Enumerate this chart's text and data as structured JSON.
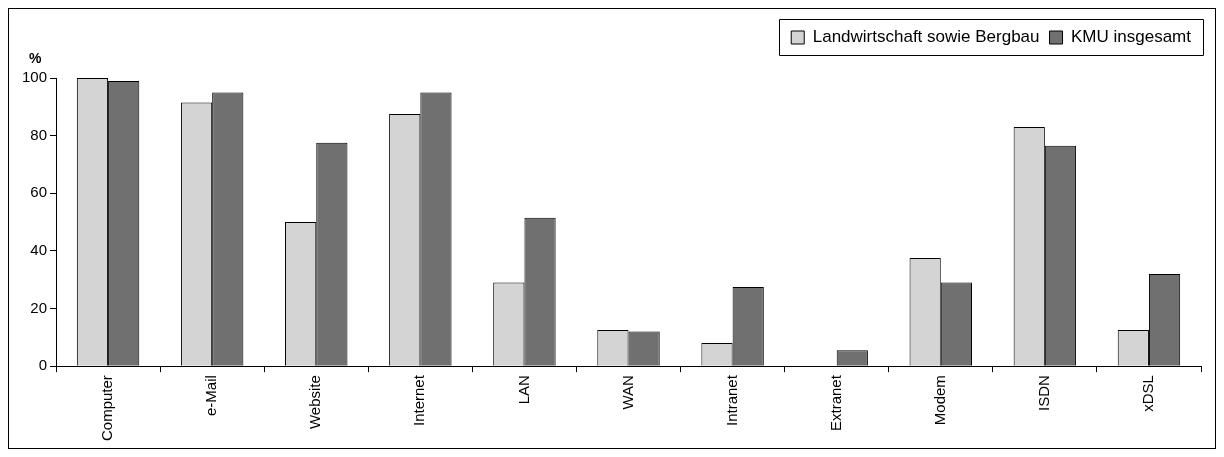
{
  "chart_data": {
    "type": "bar",
    "ylabel": "%",
    "categories": [
      "Computer",
      "e-Mail",
      "Website",
      "Internet",
      "LAN",
      "WAN",
      "Intranet",
      "Extranet",
      "Modem",
      "ISDN",
      "xDSL"
    ],
    "series": [
      {
        "name": "Landwirtschaft sowie Bergbau",
        "color": "#d4d4d4",
        "values": [
          100,
          91.5,
          50,
          87.5,
          29,
          12.5,
          8,
          0,
          37.5,
          83,
          12.5
        ]
      },
      {
        "name": "KMU insgesamt",
        "color": "#707070",
        "values": [
          99,
          95,
          77.5,
          95,
          51.5,
          12,
          27.5,
          5.5,
          29,
          76.5,
          32
        ]
      }
    ],
    "ylim": [
      0,
      100
    ],
    "yticks": [
      0,
      20,
      40,
      60,
      80,
      100
    ],
    "grid": false,
    "legend": "top right"
  }
}
